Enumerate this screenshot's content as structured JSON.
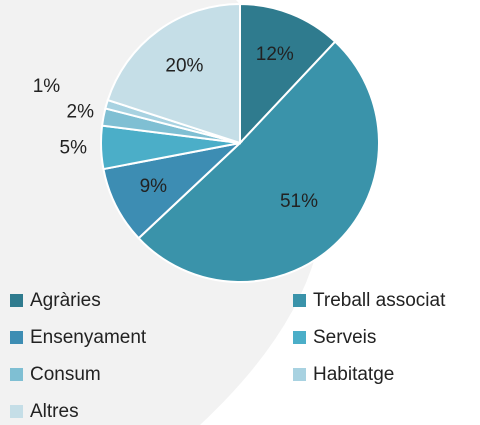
{
  "chart_data": {
    "type": "pie",
    "categories": [
      "Agràries",
      "Treball associat",
      "Ensenyament",
      "Serveis",
      "Consum",
      "Habitatge",
      "Altres"
    ],
    "values": [
      12,
      51,
      9,
      5,
      2,
      1,
      20
    ],
    "value_labels": [
      "12%",
      "51%",
      "9%",
      "5%",
      "2%",
      "1%",
      "20%"
    ],
    "colors": [
      "#2f7b8e",
      "#3a93aa",
      "#3d8db3",
      "#4baec8",
      "#7fbfd3",
      "#a8d2e1",
      "#c5dee7"
    ],
    "legend": "bottom"
  }
}
